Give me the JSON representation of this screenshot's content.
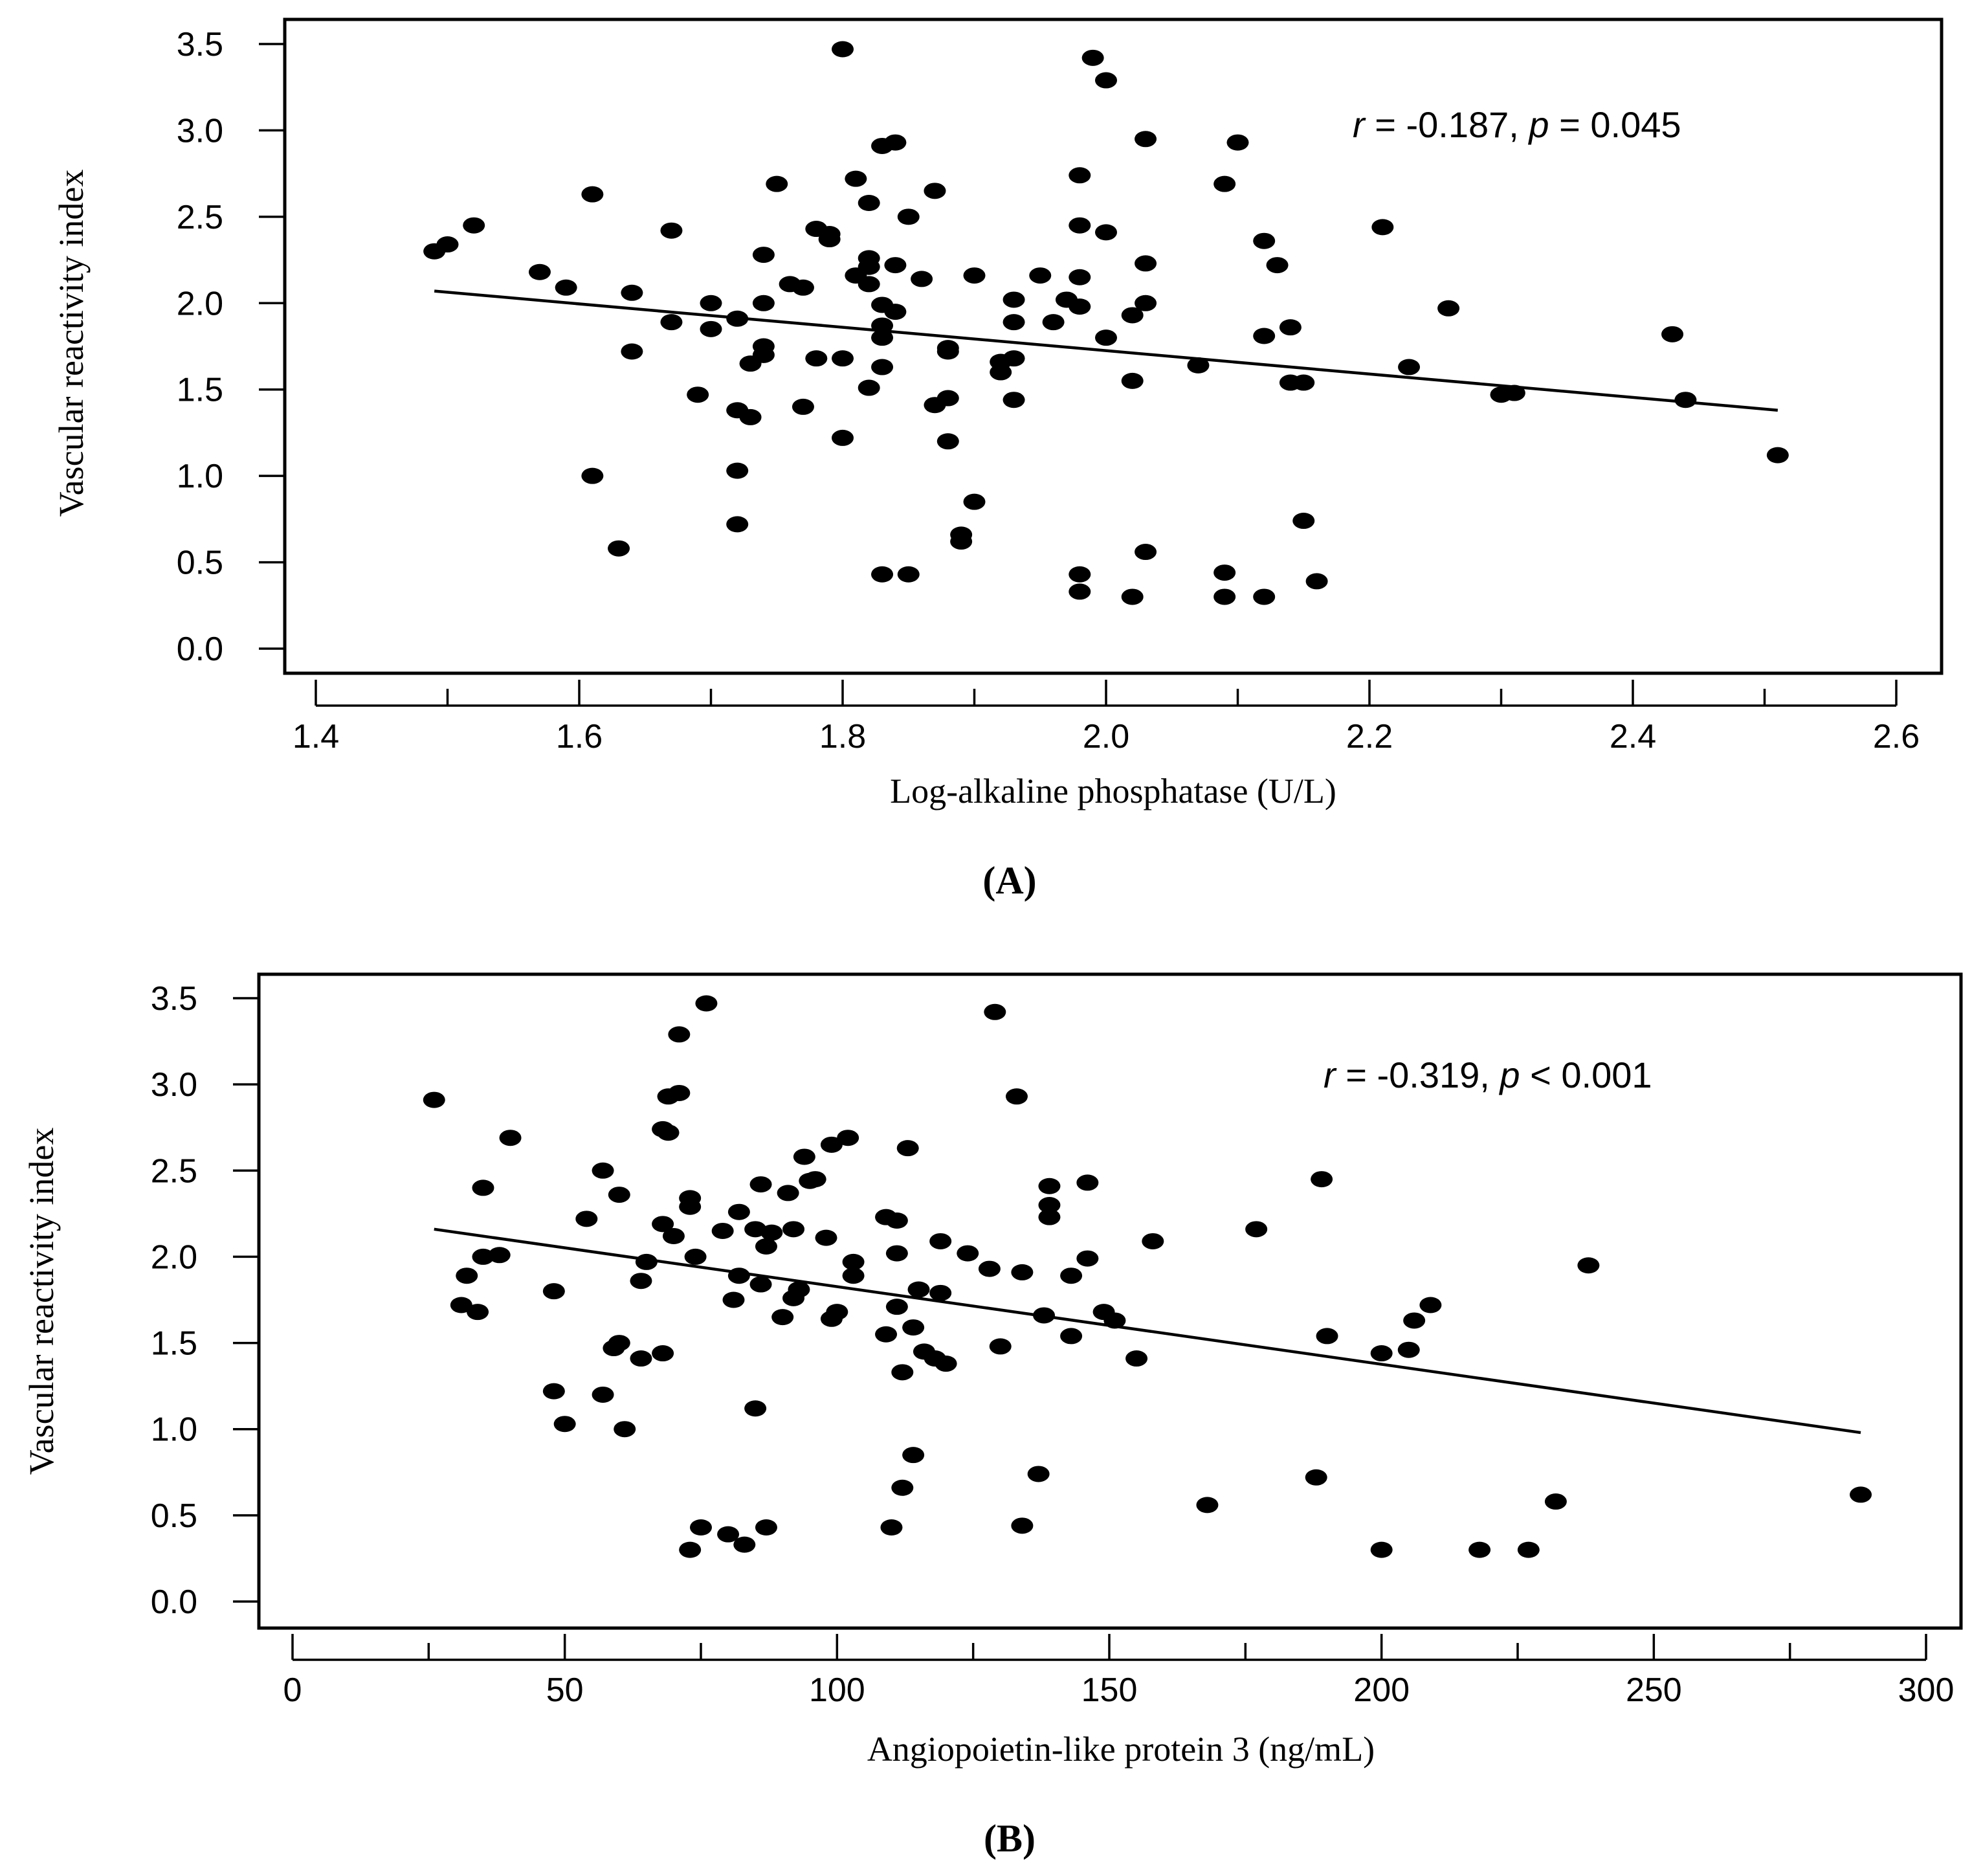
{
  "chart_data": [
    {
      "type": "scatter",
      "panel_label": "A",
      "xlabel": "Log-alkaline phosphatase (U/L)",
      "ylabel": "Vascular reactivity index",
      "xlim": [
        1.4,
        2.6
      ],
      "ylim": [
        0.0,
        3.5
      ],
      "x_ticks": [
        "1.4",
        "1.6",
        "1.8",
        "2.0",
        "2.2",
        "2.4",
        "2.6"
      ],
      "y_ticks": [
        "0.0",
        "0.5",
        "1.0",
        "1.5",
        "2.0",
        "2.5",
        "3.0",
        "3.5"
      ],
      "annotation": {
        "r_symbol": "r",
        "r_text": " = -0.187, ",
        "p_symbol": "p",
        "p_text": " = 0.045"
      },
      "regression": {
        "x": [
          1.49,
          2.51
        ],
        "y": [
          2.07,
          1.38
        ]
      },
      "points": [
        [
          1.49,
          2.3
        ],
        [
          1.5,
          2.34
        ],
        [
          1.52,
          2.45
        ],
        [
          1.57,
          2.18
        ],
        [
          1.59,
          2.09
        ],
        [
          1.61,
          2.63
        ],
        [
          1.61,
          1.0
        ],
        [
          1.63,
          0.58
        ],
        [
          1.64,
          2.06
        ],
        [
          1.64,
          1.72
        ],
        [
          1.67,
          2.42
        ],
        [
          1.67,
          1.89
        ],
        [
          1.69,
          1.47
        ],
        [
          1.7,
          2.0
        ],
        [
          1.7,
          1.85
        ],
        [
          1.72,
          1.91
        ],
        [
          1.72,
          0.72
        ],
        [
          1.72,
          1.38
        ],
        [
          1.72,
          1.03
        ],
        [
          1.73,
          1.34
        ],
        [
          1.73,
          1.65
        ],
        [
          1.74,
          2.28
        ],
        [
          1.74,
          2.0
        ],
        [
          1.74,
          1.75
        ],
        [
          1.74,
          1.7
        ],
        [
          1.75,
          2.69
        ],
        [
          1.76,
          2.11
        ],
        [
          1.77,
          2.09
        ],
        [
          1.77,
          1.4
        ],
        [
          1.78,
          2.43
        ],
        [
          1.78,
          1.68
        ],
        [
          1.79,
          2.4
        ],
        [
          1.79,
          2.37
        ],
        [
          1.8,
          3.47
        ],
        [
          1.8,
          1.68
        ],
        [
          1.8,
          1.22
        ],
        [
          1.81,
          2.72
        ],
        [
          1.81,
          2.16
        ],
        [
          1.82,
          2.11
        ],
        [
          1.82,
          2.58
        ],
        [
          1.82,
          2.26
        ],
        [
          1.82,
          2.21
        ],
        [
          1.82,
          1.51
        ],
        [
          1.83,
          2.91
        ],
        [
          1.83,
          1.99
        ],
        [
          1.83,
          1.63
        ],
        [
          1.83,
          1.87
        ],
        [
          1.83,
          1.8
        ],
        [
          1.84,
          2.93
        ],
        [
          1.84,
          2.22
        ],
        [
          1.84,
          1.95
        ],
        [
          1.83,
          0.43
        ],
        [
          1.85,
          0.43
        ],
        [
          1.85,
          2.5
        ],
        [
          1.86,
          2.14
        ],
        [
          1.87,
          2.65
        ],
        [
          1.87,
          1.41
        ],
        [
          1.88,
          1.74
        ],
        [
          1.88,
          1.72
        ],
        [
          1.88,
          1.45
        ],
        [
          1.88,
          1.2
        ],
        [
          1.89,
          0.62
        ],
        [
          1.89,
          0.66
        ],
        [
          1.9,
          2.16
        ],
        [
          1.9,
          0.85
        ],
        [
          1.92,
          1.66
        ],
        [
          1.92,
          1.6
        ],
        [
          1.93,
          2.02
        ],
        [
          1.93,
          1.89
        ],
        [
          1.93,
          1.68
        ],
        [
          1.93,
          1.44
        ],
        [
          1.95,
          2.16
        ],
        [
          1.96,
          1.89
        ],
        [
          1.97,
          2.02
        ],
        [
          1.98,
          2.45
        ],
        [
          1.98,
          2.74
        ],
        [
          1.98,
          2.15
        ],
        [
          1.98,
          1.98
        ],
        [
          1.98,
          0.43
        ],
        [
          1.98,
          0.33
        ],
        [
          1.99,
          3.42
        ],
        [
          2.0,
          3.29
        ],
        [
          2.0,
          2.41
        ],
        [
          2.0,
          1.8
        ],
        [
          2.02,
          1.93
        ],
        [
          2.02,
          1.55
        ],
        [
          2.02,
          0.3
        ],
        [
          2.03,
          2.95
        ],
        [
          2.03,
          2.23
        ],
        [
          2.03,
          2.0
        ],
        [
          2.03,
          0.56
        ],
        [
          2.07,
          1.64
        ],
        [
          2.09,
          2.69
        ],
        [
          2.09,
          0.44
        ],
        [
          2.09,
          0.3
        ],
        [
          2.1,
          2.93
        ],
        [
          2.12,
          1.81
        ],
        [
          2.12,
          2.36
        ],
        [
          2.12,
          0.3
        ],
        [
          2.13,
          2.22
        ],
        [
          2.14,
          1.86
        ],
        [
          2.14,
          1.54
        ],
        [
          2.15,
          1.54
        ],
        [
          2.15,
          0.74
        ],
        [
          2.16,
          0.39
        ],
        [
          2.21,
          2.44
        ],
        [
          2.23,
          1.63
        ],
        [
          2.26,
          1.97
        ],
        [
          2.3,
          1.47
        ],
        [
          2.31,
          1.48
        ],
        [
          2.43,
          1.82
        ],
        [
          2.44,
          1.44
        ],
        [
          2.51,
          1.12
        ]
      ]
    },
    {
      "type": "scatter",
      "panel_label": "B",
      "xlabel": "Angiopoietin-like protein 3 (ng/mL)",
      "ylabel": "Vascular reactivity index",
      "xlim": [
        0,
        300
      ],
      "ylim": [
        0.0,
        3.5
      ],
      "x_ticks": [
        "0",
        "50",
        "100",
        "150",
        "200",
        "250",
        "300"
      ],
      "y_ticks": [
        "0.0",
        "0.5",
        "1.0",
        "1.5",
        "2.0",
        "2.5",
        "3.0",
        "3.5"
      ],
      "annotation": {
        "r_symbol": "r",
        "r_text": " = -0.319, ",
        "p_symbol": "p",
        "p_text": " < 0.001"
      },
      "regression": {
        "x": [
          26,
          288
        ],
        "y": [
          2.16,
          0.98
        ]
      },
      "points": [
        [
          26,
          2.91
        ],
        [
          31,
          1.72
        ],
        [
          32,
          1.89
        ],
        [
          34,
          1.68
        ],
        [
          35,
          2.4
        ],
        [
          35,
          2.0
        ],
        [
          38,
          2.01
        ],
        [
          40,
          2.69
        ],
        [
          48,
          1.8
        ],
        [
          48,
          1.22
        ],
        [
          50,
          1.03
        ],
        [
          54,
          2.22
        ],
        [
          57,
          2.5
        ],
        [
          57,
          1.2
        ],
        [
          59,
          1.47
        ],
        [
          60,
          1.5
        ],
        [
          60,
          2.36
        ],
        [
          61,
          1.0
        ],
        [
          64,
          1.41
        ],
        [
          64,
          1.86
        ],
        [
          65,
          1.97
        ],
        [
          68,
          2.74
        ],
        [
          68,
          2.19
        ],
        [
          68,
          1.44
        ],
        [
          69,
          2.72
        ],
        [
          69,
          2.93
        ],
        [
          70,
          2.12
        ],
        [
          71,
          2.95
        ],
        [
          71,
          3.29
        ],
        [
          73,
          2.34
        ],
        [
          73,
          2.29
        ],
        [
          73,
          0.3
        ],
        [
          74,
          2.0
        ],
        [
          75,
          0.43
        ],
        [
          76,
          3.47
        ],
        [
          79,
          2.15
        ],
        [
          80,
          0.39
        ],
        [
          81,
          1.75
        ],
        [
          82,
          2.26
        ],
        [
          82,
          1.89
        ],
        [
          83,
          0.33
        ],
        [
          85,
          1.12
        ],
        [
          85,
          2.16
        ],
        [
          86,
          2.42
        ],
        [
          86,
          1.84
        ],
        [
          87,
          2.06
        ],
        [
          87,
          0.43
        ],
        [
          88,
          2.14
        ],
        [
          90,
          1.65
        ],
        [
          91,
          2.37
        ],
        [
          92,
          1.76
        ],
        [
          92,
          2.16
        ],
        [
          93,
          1.81
        ],
        [
          94,
          2.58
        ],
        [
          95,
          2.44
        ],
        [
          96,
          2.45
        ],
        [
          98,
          2.11
        ],
        [
          99,
          2.65
        ],
        [
          99,
          1.64
        ],
        [
          100,
          1.68
        ],
        [
          102,
          2.69
        ],
        [
          103,
          1.89
        ],
        [
          103,
          1.97
        ],
        [
          109,
          2.23
        ],
        [
          109,
          1.55
        ],
        [
          110,
          0.43
        ],
        [
          111,
          2.21
        ],
        [
          111,
          1.71
        ],
        [
          111,
          2.02
        ],
        [
          112,
          1.33
        ],
        [
          112,
          0.66
        ],
        [
          113,
          2.63
        ],
        [
          114,
          1.59
        ],
        [
          114,
          0.85
        ],
        [
          115,
          1.81
        ],
        [
          116,
          1.45
        ],
        [
          118,
          1.41
        ],
        [
          119,
          1.79
        ],
        [
          119,
          2.09
        ],
        [
          120,
          1.38
        ],
        [
          124,
          2.02
        ],
        [
          128,
          1.93
        ],
        [
          129,
          3.42
        ],
        [
          130,
          1.48
        ],
        [
          133,
          2.93
        ],
        [
          134,
          1.91
        ],
        [
          134,
          0.44
        ],
        [
          137,
          0.74
        ],
        [
          138,
          1.66
        ],
        [
          139,
          2.41
        ],
        [
          139,
          2.3
        ],
        [
          139,
          2.23
        ],
        [
          143,
          1.89
        ],
        [
          143,
          1.54
        ],
        [
          146,
          2.43
        ],
        [
          146,
          1.99
        ],
        [
          149,
          1.68
        ],
        [
          151,
          1.63
        ],
        [
          155,
          1.41
        ],
        [
          158,
          2.09
        ],
        [
          168,
          0.56
        ],
        [
          177,
          2.16
        ],
        [
          188,
          0.72
        ],
        [
          189,
          2.45
        ],
        [
          190,
          1.54
        ],
        [
          200,
          1.44
        ],
        [
          200,
          0.3
        ],
        [
          205,
          1.46
        ],
        [
          206,
          1.63
        ],
        [
          209,
          1.72
        ],
        [
          218,
          0.3
        ],
        [
          227,
          0.3
        ],
        [
          232,
          0.58
        ],
        [
          238,
          1.95
        ],
        [
          288,
          0.62
        ]
      ]
    }
  ]
}
